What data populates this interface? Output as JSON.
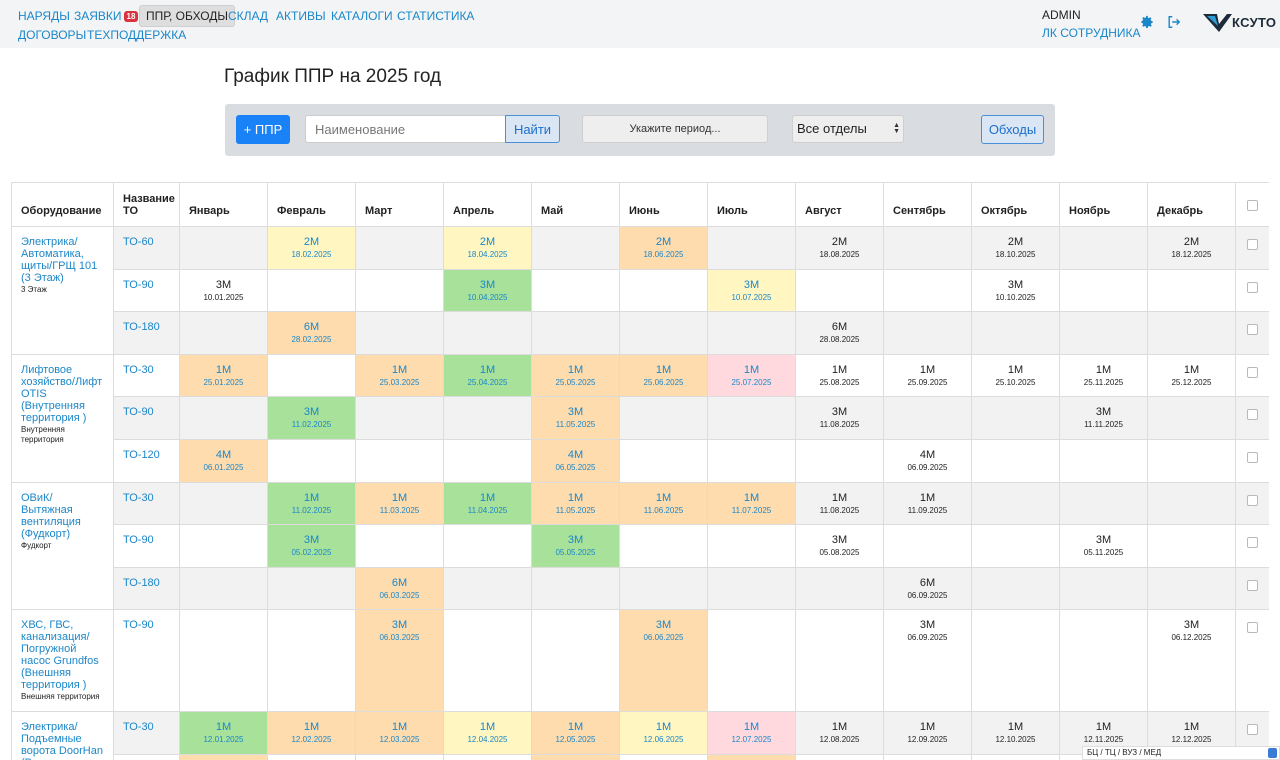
{
  "nav": {
    "orders": "НАРЯДЫ",
    "requests": "ЗАЯВКИ",
    "requests_badge": "18",
    "ppr": "ППР, ОБХОДЫ",
    "warehouse": "СКЛАД",
    "assets": "АКТИВЫ",
    "catalogs": "КАТАЛОГИ",
    "statistics": "СТАТИСТИКА",
    "contracts": "ДОГОВОРЫ",
    "support": "ТЕХПОДДЕРЖКА"
  },
  "header": {
    "user": "ADMIN",
    "employee_link": "ЛК СОТРУДНИКА",
    "logo_text": "КСУТО"
  },
  "page": {
    "title": "График ППР на 2025 год"
  },
  "filters": {
    "add_button": "+ ППР",
    "name_placeholder": "Наименование",
    "find_button": "Найти",
    "period_button": "Укажите период...",
    "department_select": "Все отделы",
    "rounds_button": "Обходы"
  },
  "table": {
    "headers": {
      "equipment": "Оборудование",
      "to_name": "Название ТО",
      "months": [
        "Январь",
        "Февраль",
        "Март",
        "Апрель",
        "Май",
        "Июнь",
        "Июль",
        "Август",
        "Сентябрь",
        "Октябрь",
        "Ноябрь",
        "Декабрь"
      ]
    },
    "equipment": [
      {
        "name": "Электрика/ Автоматика, щиты/ГРЩ 101 (3 Этаж)",
        "location": "3 Этаж",
        "rows": [
          {
            "to": "ТО-60",
            "cells": [
              null,
              {
                "v": "2М",
                "d": "18.02.2025",
                "s": "yellow"
              },
              null,
              {
                "v": "2М",
                "d": "18.04.2025",
                "s": "yellow"
              },
              null,
              {
                "v": "2М",
                "d": "18.06.2025",
                "s": "orange"
              },
              null,
              {
                "v": "2М",
                "d": "18.08.2025",
                "s": "plain"
              },
              null,
              {
                "v": "2М",
                "d": "18.10.2025",
                "s": "plain"
              },
              null,
              {
                "v": "2М",
                "d": "18.12.2025",
                "s": "plain"
              }
            ]
          },
          {
            "to": "ТО-90",
            "cells": [
              {
                "v": "3М",
                "d": "10.01.2025",
                "s": "plain"
              },
              null,
              null,
              {
                "v": "3М",
                "d": "10.04.2025",
                "s": "green"
              },
              null,
              null,
              {
                "v": "3М",
                "d": "10.07.2025",
                "s": "yellow"
              },
              null,
              null,
              {
                "v": "3М",
                "d": "10.10.2025",
                "s": "plain"
              },
              null,
              null
            ]
          },
          {
            "to": "ТО-180",
            "cells": [
              null,
              {
                "v": "6М",
                "d": "28.02.2025",
                "s": "orange"
              },
              null,
              null,
              null,
              null,
              null,
              {
                "v": "6М",
                "d": "28.08.2025",
                "s": "plain"
              },
              null,
              null,
              null,
              null
            ]
          }
        ]
      },
      {
        "name": "Лифтовое хозяйство/Лифт OTIS (Внутренняя территория )",
        "location": "Внутренняя территория",
        "rows": [
          {
            "to": "ТО-30",
            "cells": [
              {
                "v": "1М",
                "d": "25.01.2025",
                "s": "orange"
              },
              null,
              {
                "v": "1М",
                "d": "25.03.2025",
                "s": "orange"
              },
              {
                "v": "1М",
                "d": "25.04.2025",
                "s": "green"
              },
              {
                "v": "1М",
                "d": "25.05.2025",
                "s": "orange"
              },
              {
                "v": "1М",
                "d": "25.06.2025",
                "s": "orange"
              },
              {
                "v": "1М",
                "d": "25.07.2025",
                "s": "pink"
              },
              {
                "v": "1М",
                "d": "25.08.2025",
                "s": "plain"
              },
              {
                "v": "1М",
                "d": "25.09.2025",
                "s": "plain"
              },
              {
                "v": "1М",
                "d": "25.10.2025",
                "s": "plain"
              },
              {
                "v": "1М",
                "d": "25.11.2025",
                "s": "plain"
              },
              {
                "v": "1М",
                "d": "25.12.2025",
                "s": "plain"
              }
            ]
          },
          {
            "to": "ТО-90",
            "cells": [
              null,
              {
                "v": "3М",
                "d": "11.02.2025",
                "s": "green"
              },
              null,
              null,
              {
                "v": "3М",
                "d": "11.05.2025",
                "s": "orange"
              },
              null,
              null,
              {
                "v": "3М",
                "d": "11.08.2025",
                "s": "plain"
              },
              null,
              null,
              {
                "v": "3М",
                "d": "11.11.2025",
                "s": "plain"
              },
              null
            ]
          },
          {
            "to": "ТО-120",
            "cells": [
              {
                "v": "4М",
                "d": "06.01.2025",
                "s": "orange"
              },
              null,
              null,
              null,
              {
                "v": "4М",
                "d": "06.05.2025",
                "s": "orange"
              },
              null,
              null,
              null,
              {
                "v": "4М",
                "d": "06.09.2025",
                "s": "plain"
              },
              null,
              null,
              null
            ]
          }
        ]
      },
      {
        "name": "ОВиК/Вытяжная вентиляция (Фудкорт)",
        "location": "Фудкорт",
        "rows": [
          {
            "to": "ТО-30",
            "cells": [
              null,
              {
                "v": "1М",
                "d": "11.02.2025",
                "s": "green"
              },
              {
                "v": "1М",
                "d": "11.03.2025",
                "s": "orange"
              },
              {
                "v": "1М",
                "d": "11.04.2025",
                "s": "green"
              },
              {
                "v": "1М",
                "d": "11.05.2025",
                "s": "orange"
              },
              {
                "v": "1М",
                "d": "11.06.2025",
                "s": "orange"
              },
              {
                "v": "1М",
                "d": "11.07.2025",
                "s": "orange"
              },
              {
                "v": "1М",
                "d": "11.08.2025",
                "s": "plain"
              },
              {
                "v": "1М",
                "d": "11.09.2025",
                "s": "plain"
              },
              null,
              null,
              null
            ]
          },
          {
            "to": "ТО-90",
            "cells": [
              null,
              {
                "v": "3М",
                "d": "05.02.2025",
                "s": "green"
              },
              null,
              null,
              {
                "v": "3М",
                "d": "05.05.2025",
                "s": "green"
              },
              null,
              null,
              {
                "v": "3М",
                "d": "05.08.2025",
                "s": "plain"
              },
              null,
              null,
              {
                "v": "3М",
                "d": "05.11.2025",
                "s": "plain"
              },
              null
            ]
          },
          {
            "to": "ТО-180",
            "cells": [
              null,
              null,
              {
                "v": "6М",
                "d": "06.03.2025",
                "s": "orange"
              },
              null,
              null,
              null,
              null,
              null,
              {
                "v": "6М",
                "d": "06.09.2025",
                "s": "plain"
              },
              null,
              null,
              null
            ]
          }
        ]
      },
      {
        "name": "ХВС, ГВС, канализация/ Погружной насос Grundfos (Внешняя территория )",
        "location": "Внешняя территория",
        "tall": true,
        "rows": [
          {
            "to": "ТО-90",
            "cells": [
              null,
              null,
              {
                "v": "3М",
                "d": "06.03.2025",
                "s": "orange"
              },
              null,
              null,
              {
                "v": "3М",
                "d": "06.06.2025",
                "s": "orange"
              },
              null,
              null,
              {
                "v": "3М",
                "d": "06.09.2025",
                "s": "plain"
              },
              null,
              null,
              {
                "v": "3М",
                "d": "06.12.2025",
                "s": "plain"
              }
            ]
          }
        ]
      },
      {
        "name": "Электрика/ Подъемные ворота DoorHan (Внешняя",
        "location": "",
        "rows": [
          {
            "to": "ТО-30",
            "cells": [
              {
                "v": "1М",
                "d": "12.01.2025",
                "s": "green"
              },
              {
                "v": "1М",
                "d": "12.02.2025",
                "s": "orange"
              },
              {
                "v": "1М",
                "d": "12.03.2025",
                "s": "orange"
              },
              {
                "v": "1М",
                "d": "12.04.2025",
                "s": "yellow"
              },
              {
                "v": "1М",
                "d": "12.05.2025",
                "s": "orange"
              },
              {
                "v": "1М",
                "d": "12.06.2025",
                "s": "yellow"
              },
              {
                "v": "1М",
                "d": "12.07.2025",
                "s": "pink"
              },
              {
                "v": "1М",
                "d": "12.08.2025",
                "s": "plain"
              },
              {
                "v": "1М",
                "d": "12.09.2025",
                "s": "plain"
              },
              {
                "v": "1М",
                "d": "12.10.2025",
                "s": "plain"
              },
              {
                "v": "1М",
                "d": "12.11.2025",
                "s": "plain"
              },
              {
                "v": "1М",
                "d": "12.12.2025",
                "s": "plain"
              }
            ]
          },
          {
            "to": "",
            "cells": [
              {
                "v": "",
                "d": "",
                "s": "orange"
              },
              null,
              null,
              null,
              {
                "v": "",
                "d": "",
                "s": "orange"
              },
              null,
              {
                "v": "",
                "d": "",
                "s": "orange"
              },
              null,
              null,
              null,
              null,
              null
            ]
          }
        ]
      }
    ]
  },
  "footer": {
    "object_select": "БЦ / ТЦ / ВУЗ / МЕД"
  },
  "colors": {
    "accent": "#1a82f7",
    "link": "#1b87c9",
    "done": "#a7e19a",
    "planned": "#ffdcae",
    "soon": "#fff6c2",
    "overdue": "#ffd9de"
  }
}
